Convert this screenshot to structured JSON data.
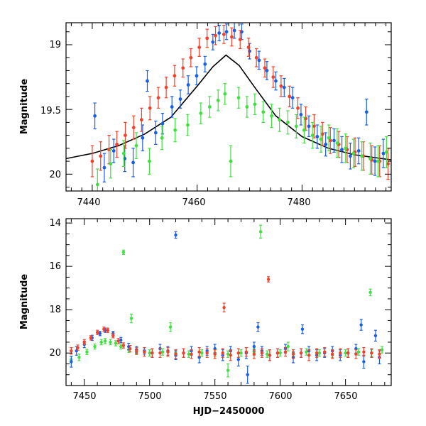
{
  "chart_data": [
    {
      "type": "scatter",
      "title": "",
      "xlabel": "",
      "ylabel": "Magnitude",
      "xlim": [
        7435,
        7497
      ],
      "ylim": [
        20.13,
        18.83
      ],
      "y_inverted": true,
      "x_ticks": [
        "7440",
        "7460",
        "7480"
      ],
      "y_ticks": [
        "19",
        "19.5",
        "20"
      ],
      "colors": {
        "blue": "#1a5ee8",
        "red": "#f2402a",
        "green": "#3fe03f",
        "model": "#000000"
      },
      "model_curve": {
        "peak_x": 7465.5,
        "peak_mag": 19.08,
        "baseline_mag": 20.01,
        "x": [
          7435,
          7440,
          7445,
          7450,
          7455,
          7460,
          7463,
          7465.5,
          7468,
          7471,
          7475,
          7480,
          7485,
          7490,
          7497
        ],
        "y": [
          19.88,
          19.84,
          19.78,
          19.69,
          19.56,
          19.32,
          19.17,
          19.08,
          19.16,
          19.33,
          19.55,
          19.71,
          19.8,
          19.85,
          19.89
        ]
      },
      "series": [
        {
          "color": "blue",
          "x": [
            7440.5,
            7442.3,
            7444.1,
            7446.2,
            7447.8,
            7449.6,
            7450.5,
            7452.1,
            7453.4,
            7455.2,
            7456.8,
            7458.3,
            7459.9,
            7461.5,
            7463.0,
            7464.2,
            7465.6,
            7467.1,
            7468.5,
            7470.0,
            7471.8,
            7473.3,
            7475.0,
            7476.6,
            7478.2,
            7479.8,
            7481.3,
            7482.9,
            7484.5,
            7486.1,
            7487.6,
            7489.2,
            7490.8,
            7492.3,
            7493.9,
            7495.5
          ],
          "y": [
            19.55,
            19.95,
            19.82,
            19.88,
            19.91,
            19.72,
            19.28,
            19.68,
            19.61,
            19.48,
            19.42,
            19.31,
            19.24,
            19.15,
            18.98,
            18.91,
            18.9,
            18.89,
            18.9,
            19.05,
            19.12,
            19.2,
            19.28,
            19.33,
            19.41,
            19.54,
            19.63,
            19.71,
            19.77,
            19.74,
            19.81,
            19.86,
            19.82,
            19.52,
            19.9,
            19.84
          ],
          "err": [
            0.1,
            0.11,
            0.09,
            0.1,
            0.11,
            0.1,
            0.08,
            0.09,
            0.08,
            0.08,
            0.07,
            0.07,
            0.07,
            0.06,
            0.06,
            0.06,
            0.06,
            0.06,
            0.06,
            0.06,
            0.07,
            0.07,
            0.07,
            0.07,
            0.08,
            0.08,
            0.08,
            0.09,
            0.09,
            0.09,
            0.1,
            0.1,
            0.1,
            0.1,
            0.11,
            0.11
          ]
        },
        {
          "color": "red",
          "x": [
            7440.0,
            7441.6,
            7443.2,
            7444.7,
            7446.3,
            7447.9,
            7449.4,
            7451.0,
            7452.6,
            7454.1,
            7455.7,
            7457.3,
            7458.8,
            7460.4,
            7461.9,
            7463.5,
            7465.1,
            7466.6,
            7468.2,
            7469.8,
            7471.3,
            7472.9,
            7474.5,
            7476.0,
            7477.6,
            7479.2,
            7480.7,
            7482.3,
            7483.9,
            7485.4,
            7487.0,
            7488.6,
            7490.1,
            7491.7,
            7493.3,
            7494.8,
            7496.4
          ],
          "y": [
            19.9,
            19.86,
            19.81,
            19.77,
            19.7,
            19.64,
            19.58,
            19.49,
            19.41,
            19.33,
            19.24,
            19.18,
            19.1,
            19.02,
            18.95,
            18.93,
            18.92,
            18.94,
            18.96,
            19.02,
            19.1,
            19.18,
            19.25,
            19.32,
            19.4,
            19.49,
            19.57,
            19.63,
            19.69,
            19.74,
            19.77,
            19.81,
            19.83,
            19.86,
            19.89,
            19.9,
            19.92
          ],
          "err": [
            0.12,
            0.11,
            0.11,
            0.1,
            0.1,
            0.09,
            0.09,
            0.09,
            0.08,
            0.08,
            0.08,
            0.07,
            0.07,
            0.07,
            0.07,
            0.07,
            0.07,
            0.07,
            0.07,
            0.07,
            0.07,
            0.07,
            0.08,
            0.08,
            0.08,
            0.08,
            0.09,
            0.09,
            0.09,
            0.1,
            0.1,
            0.1,
            0.11,
            0.11,
            0.11,
            0.12,
            0.12
          ]
        },
        {
          "color": "green",
          "x": [
            7441.0,
            7443.5,
            7446.0,
            7448.4,
            7450.9,
            7453.3,
            7455.8,
            7458.2,
            7460.7,
            7462.4,
            7464.0,
            7465.3,
            7466.4,
            7467.9,
            7469.5,
            7471.0,
            7472.6,
            7474.2,
            7475.7,
            7477.3,
            7478.9,
            7480.4,
            7482.0,
            7483.6,
            7485.1,
            7486.7,
            7488.3,
            7489.8,
            7491.4,
            7493.0,
            7494.5,
            7496.1
          ],
          "y": [
            20.08,
            19.92,
            19.84,
            19.78,
            19.9,
            19.72,
            19.66,
            19.62,
            19.53,
            19.48,
            19.43,
            19.38,
            19.9,
            19.41,
            19.48,
            19.46,
            19.52,
            19.55,
            19.58,
            19.6,
            19.63,
            19.66,
            19.7,
            19.73,
            19.72,
            19.76,
            19.8,
            19.84,
            19.86,
            19.88,
            19.9,
            19.83
          ],
          "err": [
            0.12,
            0.11,
            0.1,
            0.1,
            0.1,
            0.09,
            0.09,
            0.08,
            0.08,
            0.08,
            0.08,
            0.08,
            0.12,
            0.08,
            0.08,
            0.08,
            0.08,
            0.09,
            0.09,
            0.09,
            0.09,
            0.1,
            0.1,
            0.1,
            0.1,
            0.11,
            0.11,
            0.11,
            0.11,
            0.12,
            0.12,
            0.12
          ]
        }
      ]
    },
    {
      "type": "scatter",
      "title": "",
      "xlabel": "HJD−2450000",
      "ylabel": "Magnitude",
      "xlim": [
        7436,
        7685
      ],
      "ylim": [
        21.5,
        13.8
      ],
      "y_inverted": true,
      "x_ticks": [
        "7450",
        "7500",
        "7550",
        "7600",
        "7650"
      ],
      "y_ticks": [
        "14",
        "16",
        "18",
        "20"
      ],
      "colors": {
        "blue": "#1a5ee8",
        "red": "#f2402a",
        "green": "#3fe03f"
      },
      "series": [
        {
          "color": "green",
          "x": [
            7440,
            7446,
            7452,
            7458,
            7463,
            7466,
            7470,
            7474,
            7478,
            7484,
            7490,
            7500,
            7510,
            7520,
            7530,
            7540,
            7550,
            7560,
            7570,
            7580,
            7590,
            7600,
            7610,
            7620,
            7630,
            7640,
            7650,
            7660,
            7670,
            7678,
            7480,
            7486,
            7516,
            7585,
            7669,
            7560,
            7606
          ],
          "y": [
            20.3,
            20.2,
            19.95,
            19.7,
            19.5,
            19.45,
            19.5,
            19.55,
            19.7,
            19.85,
            19.95,
            20.0,
            19.95,
            20.0,
            20.05,
            20.0,
            20.0,
            20.05,
            20.0,
            19.95,
            20.05,
            20.0,
            20.0,
            19.95,
            20.0,
            20.05,
            20.0,
            19.95,
            20.0,
            19.85,
            15.35,
            18.4,
            18.8,
            14.4,
            17.2,
            20.8,
            19.7
          ],
          "err": [
            0.15,
            0.15,
            0.12,
            0.12,
            0.12,
            0.12,
            0.12,
            0.12,
            0.12,
            0.12,
            0.12,
            0.15,
            0.15,
            0.15,
            0.15,
            0.15,
            0.15,
            0.15,
            0.15,
            0.15,
            0.15,
            0.15,
            0.15,
            0.15,
            0.15,
            0.15,
            0.15,
            0.15,
            0.15,
            0.15,
            0.1,
            0.2,
            0.2,
            0.3,
            0.15,
            0.3,
            0.2
          ]
        },
        {
          "color": "blue",
          "x": [
            7440,
            7444,
            7450,
            7456,
            7462,
            7466,
            7472,
            7478,
            7484,
            7490,
            7496,
            7502,
            7508,
            7514,
            7520,
            7526,
            7532,
            7538,
            7544,
            7550,
            7556,
            7562,
            7568,
            7574,
            7580,
            7586,
            7592,
            7598,
            7604,
            7610,
            7616,
            7622,
            7628,
            7634,
            7640,
            7646,
            7652,
            7658,
            7664,
            7670,
            7676,
            7520,
            7583,
            7617,
            7662,
            7673,
            7575
          ],
          "y": [
            20.4,
            19.9,
            19.6,
            19.3,
            19.1,
            18.95,
            19.1,
            19.4,
            19.7,
            19.85,
            19.9,
            20.0,
            19.8,
            19.9,
            20.1,
            20.0,
            19.9,
            20.2,
            19.9,
            19.8,
            20.1,
            19.9,
            20.3,
            20.0,
            19.7,
            19.9,
            20.1,
            20.0,
            19.8,
            20.2,
            20.0,
            19.9,
            20.1,
            20.0,
            19.9,
            20.1,
            20.0,
            19.8,
            20.4,
            20.0,
            20.2,
            14.55,
            18.8,
            18.9,
            18.7,
            19.2,
            21.0
          ],
          "err": [
            0.25,
            0.2,
            0.15,
            0.12,
            0.1,
            0.1,
            0.1,
            0.12,
            0.15,
            0.15,
            0.15,
            0.2,
            0.2,
            0.2,
            0.2,
            0.2,
            0.2,
            0.25,
            0.2,
            0.2,
            0.25,
            0.2,
            0.3,
            0.25,
            0.2,
            0.2,
            0.25,
            0.2,
            0.2,
            0.25,
            0.2,
            0.2,
            0.25,
            0.2,
            0.2,
            0.25,
            0.2,
            0.2,
            0.3,
            0.2,
            0.3,
            0.15,
            0.2,
            0.2,
            0.25,
            0.25,
            0.4
          ]
        },
        {
          "color": "red",
          "x": [
            7440,
            7445,
            7450,
            7455,
            7460,
            7465,
            7468,
            7472,
            7476,
            7480,
            7485,
            7490,
            7496,
            7502,
            7508,
            7514,
            7520,
            7526,
            7532,
            7538,
            7544,
            7550,
            7556,
            7562,
            7568,
            7574,
            7580,
            7586,
            7592,
            7598,
            7604,
            7610,
            7616,
            7622,
            7628,
            7634,
            7640,
            7646,
            7652,
            7658,
            7664,
            7670,
            7676,
            7591,
            7557
          ],
          "y": [
            19.9,
            19.75,
            19.5,
            19.3,
            19.05,
            18.9,
            18.95,
            19.2,
            19.45,
            19.65,
            19.8,
            19.9,
            19.95,
            20.0,
            20.0,
            19.95,
            20.05,
            20.0,
            20.05,
            19.95,
            20.0,
            20.05,
            20.0,
            20.1,
            20.0,
            19.95,
            20.05,
            20.0,
            20.1,
            20.0,
            19.95,
            20.05,
            20.0,
            20.1,
            20.0,
            19.95,
            20.05,
            20.0,
            20.0,
            20.05,
            19.95,
            20.0,
            20.05,
            16.6,
            17.9
          ],
          "err": [
            0.15,
            0.12,
            0.12,
            0.1,
            0.1,
            0.1,
            0.1,
            0.1,
            0.12,
            0.12,
            0.15,
            0.15,
            0.2,
            0.2,
            0.2,
            0.2,
            0.2,
            0.2,
            0.2,
            0.2,
            0.2,
            0.2,
            0.2,
            0.25,
            0.2,
            0.2,
            0.2,
            0.2,
            0.25,
            0.2,
            0.2,
            0.2,
            0.2,
            0.25,
            0.2,
            0.2,
            0.2,
            0.2,
            0.2,
            0.2,
            0.2,
            0.2,
            0.2,
            0.12,
            0.2
          ]
        }
      ]
    }
  ]
}
